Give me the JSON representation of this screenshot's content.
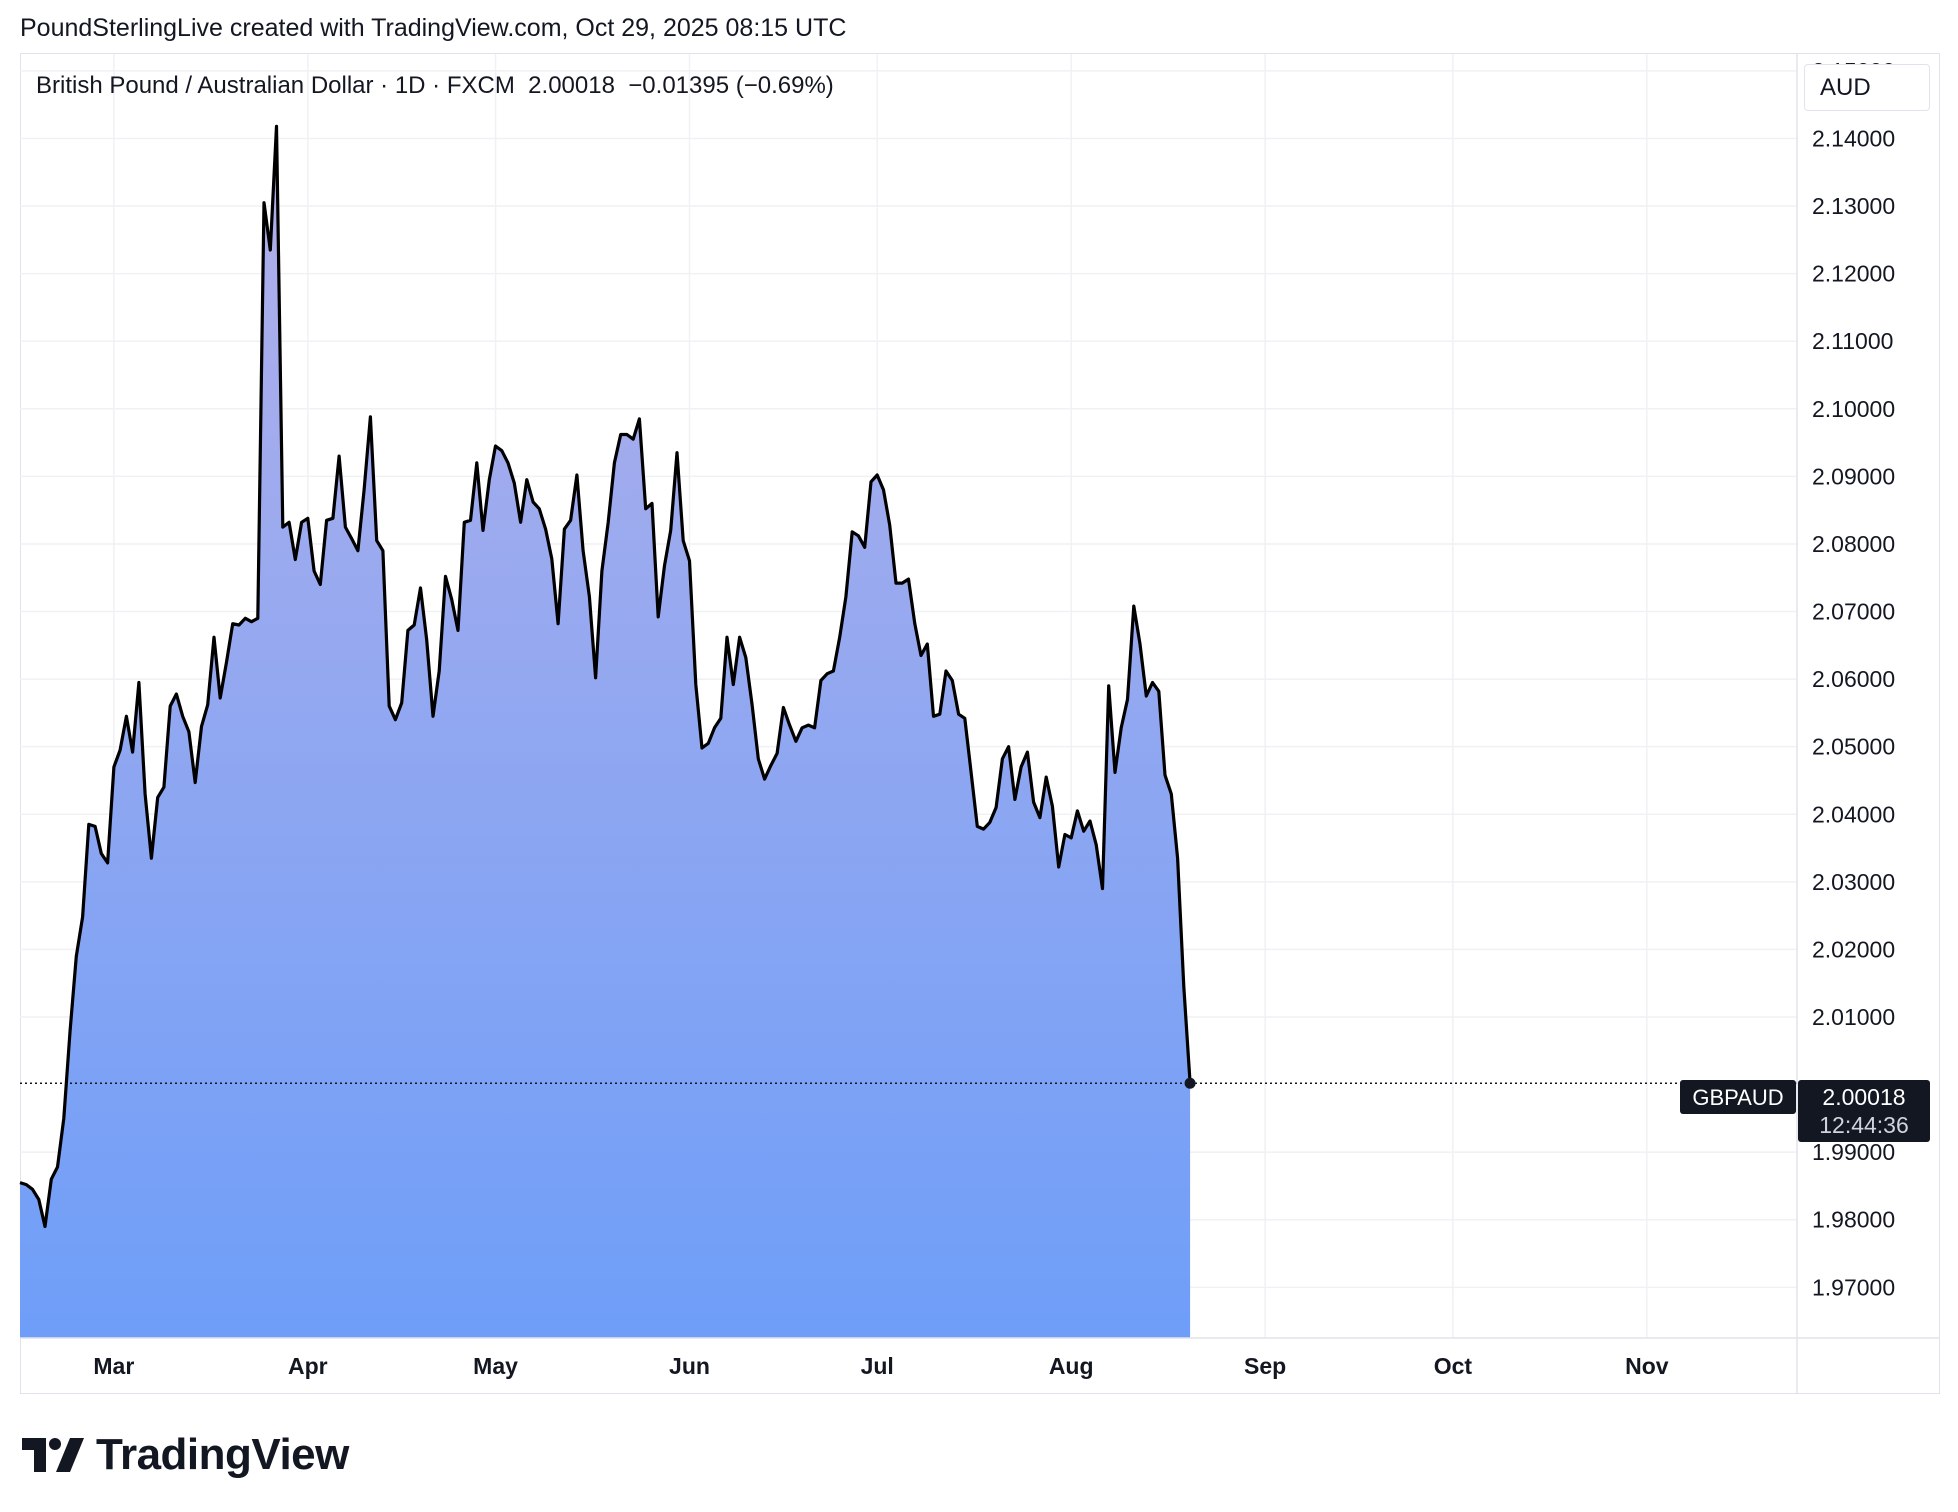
{
  "header": {
    "attribution": "PoundSterlingLive created with TradingView.com, Oct 29, 2025 08:15 UTC"
  },
  "legend": {
    "symbol": "British Pound / Australian Dollar · 1D · FXCM",
    "last": "2.00018",
    "change": "−0.01395 (−0.69%)"
  },
  "currency": "AUD",
  "price_label": {
    "ticker": "GBPAUD",
    "price": "2.00018",
    "countdown": "12:44:36"
  },
  "logo": {
    "text": "TradingView"
  },
  "colors": {
    "line": "#000000",
    "fill_top": "#b3b0ea",
    "fill_bottom": "#6e9ef8",
    "grid": "#f0f1f4"
  },
  "chart_data": {
    "type": "area",
    "title": "British Pound / Australian Dollar · 1D · FXCM",
    "ylabel": "AUD",
    "ylim": [
      1.9625,
      2.1525
    ],
    "yticks": [
      "2.15000",
      "2.14000",
      "2.13000",
      "2.12000",
      "2.11000",
      "2.10000",
      "2.09000",
      "2.08000",
      "2.07000",
      "2.06000",
      "2.05000",
      "2.04000",
      "2.03000",
      "2.02000",
      "2.01000",
      "1.99000",
      "1.98000",
      "1.97000"
    ],
    "xticks": [
      {
        "label": "Mar",
        "date": "2025-03-01"
      },
      {
        "label": "Apr",
        "date": "2025-04-01"
      },
      {
        "label": "May",
        "date": "2025-05-01"
      },
      {
        "label": "Jun",
        "date": "2025-06-01"
      },
      {
        "label": "Jul",
        "date": "2025-07-01"
      },
      {
        "label": "Aug",
        "date": "2025-08-01"
      },
      {
        "label": "Sep",
        "date": "2025-09-01"
      },
      {
        "label": "Oct",
        "date": "2025-10-01"
      },
      {
        "label": "Nov",
        "date": "2025-11-01"
      }
    ],
    "xlim": [
      "2025-02-14",
      "2025-11-25"
    ],
    "grid": true,
    "series": [
      {
        "name": "GBPAUD",
        "points": [
          [
            "2025-02-14",
            1.9855
          ],
          [
            "2025-02-15",
            1.9852
          ],
          [
            "2025-02-16",
            1.9845
          ],
          [
            "2025-02-17",
            1.983
          ],
          [
            "2025-02-18",
            1.979
          ],
          [
            "2025-02-19",
            1.986
          ],
          [
            "2025-02-20",
            1.9878
          ],
          [
            "2025-02-21",
            1.995
          ],
          [
            "2025-02-22",
            2.008
          ],
          [
            "2025-02-23",
            2.019
          ],
          [
            "2025-02-24",
            2.0248
          ],
          [
            "2025-02-25",
            2.0385
          ],
          [
            "2025-02-26",
            2.0382
          ],
          [
            "2025-02-27",
            2.0342
          ],
          [
            "2025-02-28",
            2.0328
          ],
          [
            "2025-03-01",
            2.047
          ],
          [
            "2025-03-02",
            2.0495
          ],
          [
            "2025-03-03",
            2.0545
          ],
          [
            "2025-03-04",
            2.0492
          ],
          [
            "2025-03-05",
            2.0595
          ],
          [
            "2025-03-06",
            2.043
          ],
          [
            "2025-03-07",
            2.0335
          ],
          [
            "2025-03-08",
            2.0425
          ],
          [
            "2025-03-09",
            2.044
          ],
          [
            "2025-03-10",
            2.056
          ],
          [
            "2025-03-11",
            2.0578
          ],
          [
            "2025-03-12",
            2.0545
          ],
          [
            "2025-03-13",
            2.0522
          ],
          [
            "2025-03-14",
            2.0447
          ],
          [
            "2025-03-15",
            2.053
          ],
          [
            "2025-03-16",
            2.0562
          ],
          [
            "2025-03-17",
            2.0662
          ],
          [
            "2025-03-18",
            2.0572
          ],
          [
            "2025-03-19",
            2.0625
          ],
          [
            "2025-03-20",
            2.0682
          ],
          [
            "2025-03-21",
            2.068
          ],
          [
            "2025-03-22",
            2.069
          ],
          [
            "2025-03-23",
            2.0685
          ],
          [
            "2025-03-24",
            2.069
          ],
          [
            "2025-03-25",
            2.1305
          ],
          [
            "2025-03-26",
            2.1235
          ],
          [
            "2025-03-27",
            2.1418
          ],
          [
            "2025-03-28",
            2.0825
          ],
          [
            "2025-03-29",
            2.0832
          ],
          [
            "2025-03-30",
            2.0777
          ],
          [
            "2025-03-31",
            2.0832
          ],
          [
            "2025-04-01",
            2.0838
          ],
          [
            "2025-04-02",
            2.076
          ],
          [
            "2025-04-03",
            2.074
          ],
          [
            "2025-04-04",
            2.0835
          ],
          [
            "2025-04-05",
            2.0838
          ],
          [
            "2025-04-06",
            2.093
          ],
          [
            "2025-04-07",
            2.0825
          ],
          [
            "2025-04-08",
            2.0808
          ],
          [
            "2025-04-09",
            2.079
          ],
          [
            "2025-04-10",
            2.088
          ],
          [
            "2025-04-11",
            2.0988
          ],
          [
            "2025-04-12",
            2.0805
          ],
          [
            "2025-04-13",
            2.079
          ],
          [
            "2025-04-14",
            2.056
          ],
          [
            "2025-04-15",
            2.054
          ],
          [
            "2025-04-16",
            2.0565
          ],
          [
            "2025-04-17",
            2.0672
          ],
          [
            "2025-04-18",
            2.068
          ],
          [
            "2025-04-19",
            2.0735
          ],
          [
            "2025-04-20",
            2.0658
          ],
          [
            "2025-04-21",
            2.0545
          ],
          [
            "2025-04-22",
            2.0612
          ],
          [
            "2025-04-23",
            2.0752
          ],
          [
            "2025-04-24",
            2.0718
          ],
          [
            "2025-04-25",
            2.0672
          ],
          [
            "2025-04-26",
            2.0832
          ],
          [
            "2025-04-27",
            2.0835
          ],
          [
            "2025-04-28",
            2.092
          ],
          [
            "2025-04-29",
            2.082
          ],
          [
            "2025-04-30",
            2.0895
          ],
          [
            "2025-05-01",
            2.0945
          ],
          [
            "2025-05-02",
            2.0938
          ],
          [
            "2025-05-03",
            2.092
          ],
          [
            "2025-05-04",
            2.089
          ],
          [
            "2025-05-05",
            2.0832
          ],
          [
            "2025-05-06",
            2.0895
          ],
          [
            "2025-05-07",
            2.0862
          ],
          [
            "2025-05-08",
            2.0852
          ],
          [
            "2025-05-09",
            2.0822
          ],
          [
            "2025-05-10",
            2.0778
          ],
          [
            "2025-05-11",
            2.0682
          ],
          [
            "2025-05-12",
            2.0822
          ],
          [
            "2025-05-13",
            2.0835
          ],
          [
            "2025-05-14",
            2.0902
          ],
          [
            "2025-05-15",
            2.079
          ],
          [
            "2025-05-16",
            2.0722
          ],
          [
            "2025-05-17",
            2.0602
          ],
          [
            "2025-05-18",
            2.076
          ],
          [
            "2025-05-19",
            2.0832
          ],
          [
            "2025-05-20",
            2.092
          ],
          [
            "2025-05-21",
            2.0962
          ],
          [
            "2025-05-22",
            2.0962
          ],
          [
            "2025-05-23",
            2.0955
          ],
          [
            "2025-05-24",
            2.0985
          ],
          [
            "2025-05-25",
            2.0852
          ],
          [
            "2025-05-26",
            2.086
          ],
          [
            "2025-05-27",
            2.0692
          ],
          [
            "2025-05-28",
            2.0768
          ],
          [
            "2025-05-29",
            2.082
          ],
          [
            "2025-05-30",
            2.0935
          ],
          [
            "2025-05-31",
            2.0805
          ],
          [
            "2025-06-01",
            2.0775
          ],
          [
            "2025-06-02",
            2.0592
          ],
          [
            "2025-06-03",
            2.0498
          ],
          [
            "2025-06-04",
            2.0505
          ],
          [
            "2025-06-05",
            2.0528
          ],
          [
            "2025-06-06",
            2.0542
          ],
          [
            "2025-06-07",
            2.0662
          ],
          [
            "2025-06-08",
            2.0592
          ],
          [
            "2025-06-09",
            2.0662
          ],
          [
            "2025-06-10",
            2.0632
          ],
          [
            "2025-06-11",
            2.0562
          ],
          [
            "2025-06-12",
            2.0482
          ],
          [
            "2025-06-13",
            2.0452
          ],
          [
            "2025-06-14",
            2.0472
          ],
          [
            "2025-06-15",
            2.049
          ],
          [
            "2025-06-16",
            2.0558
          ],
          [
            "2025-06-17",
            2.0532
          ],
          [
            "2025-06-18",
            2.0508
          ],
          [
            "2025-06-19",
            2.0528
          ],
          [
            "2025-06-20",
            2.0532
          ],
          [
            "2025-06-21",
            2.0528
          ],
          [
            "2025-06-22",
            2.0598
          ],
          [
            "2025-06-23",
            2.0608
          ],
          [
            "2025-06-24",
            2.0612
          ],
          [
            "2025-06-25",
            2.0662
          ],
          [
            "2025-06-26",
            2.0722
          ],
          [
            "2025-06-27",
            2.0818
          ],
          [
            "2025-06-28",
            2.0812
          ],
          [
            "2025-06-29",
            2.0795
          ],
          [
            "2025-06-30",
            2.0892
          ],
          [
            "2025-07-01",
            2.0902
          ],
          [
            "2025-07-02",
            2.088
          ],
          [
            "2025-07-03",
            2.0828
          ],
          [
            "2025-07-04",
            2.0742
          ],
          [
            "2025-07-05",
            2.0742
          ],
          [
            "2025-07-06",
            2.0748
          ],
          [
            "2025-07-07",
            2.0682
          ],
          [
            "2025-07-08",
            2.0635
          ],
          [
            "2025-07-09",
            2.0652
          ],
          [
            "2025-07-10",
            2.0545
          ],
          [
            "2025-07-11",
            2.0548
          ],
          [
            "2025-07-12",
            2.0612
          ],
          [
            "2025-07-13",
            2.0598
          ],
          [
            "2025-07-14",
            2.0548
          ],
          [
            "2025-07-15",
            2.0542
          ],
          [
            "2025-07-16",
            2.0462
          ],
          [
            "2025-07-17",
            2.0382
          ],
          [
            "2025-07-18",
            2.0378
          ],
          [
            "2025-07-19",
            2.0388
          ],
          [
            "2025-07-20",
            2.041
          ],
          [
            "2025-07-21",
            2.0482
          ],
          [
            "2025-07-22",
            2.05
          ],
          [
            "2025-07-23",
            2.0422
          ],
          [
            "2025-07-24",
            2.047
          ],
          [
            "2025-07-25",
            2.0492
          ],
          [
            "2025-07-26",
            2.0418
          ],
          [
            "2025-07-27",
            2.0395
          ],
          [
            "2025-07-28",
            2.0455
          ],
          [
            "2025-07-29",
            2.0412
          ],
          [
            "2025-07-30",
            2.0322
          ],
          [
            "2025-07-31",
            2.037
          ],
          [
            "2025-08-01",
            2.0365
          ],
          [
            "2025-08-02",
            2.0405
          ],
          [
            "2025-08-03",
            2.0375
          ],
          [
            "2025-08-04",
            2.039
          ],
          [
            "2025-08-05",
            2.0355
          ],
          [
            "2025-08-06",
            2.029
          ],
          [
            "2025-08-07",
            2.059
          ],
          [
            "2025-08-08",
            2.0462
          ],
          [
            "2025-08-09",
            2.0528
          ],
          [
            "2025-08-10",
            2.057
          ],
          [
            "2025-08-11",
            2.0708
          ],
          [
            "2025-08-12",
            2.0652
          ],
          [
            "2025-08-13",
            2.0575
          ],
          [
            "2025-08-14",
            2.0595
          ],
          [
            "2025-08-15",
            2.0582
          ],
          [
            "2025-08-16",
            2.0458
          ],
          [
            "2025-08-17",
            2.043
          ],
          [
            "2025-08-18",
            2.0335
          ],
          [
            "2025-08-19",
            2.0145
          ],
          [
            "2025-08-20",
            2.0002
          ]
        ]
      }
    ]
  }
}
